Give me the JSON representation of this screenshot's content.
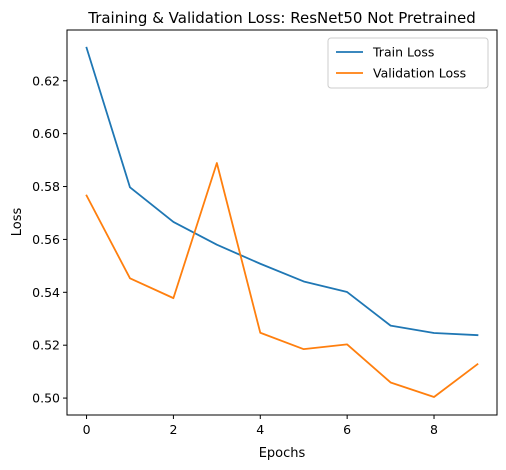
{
  "chart_data": {
    "type": "line",
    "title": "Training & Validation Loss: ResNet50 Not Pretrained",
    "xlabel": "Epochs",
    "ylabel": "Loss",
    "x": [
      0,
      1,
      2,
      3,
      4,
      5,
      6,
      7,
      8,
      9
    ],
    "xlim": [
      -0.45,
      9.45
    ],
    "ylim": [
      0.4936,
      0.6392
    ],
    "xticks": [
      0,
      2,
      4,
      6,
      8
    ],
    "yticks": [
      0.5,
      0.52,
      0.54,
      0.56,
      0.58,
      0.6,
      0.62
    ],
    "grid": false,
    "legend_position": "upper-right",
    "series": [
      {
        "name": "Train Loss",
        "color": "#1f77b4",
        "values": [
          0.6325,
          0.5797,
          0.5666,
          0.558,
          0.5508,
          0.5441,
          0.5401,
          0.5274,
          0.5246,
          0.5238
        ]
      },
      {
        "name": "Validation Loss",
        "color": "#ff7f0e",
        "values": [
          0.5766,
          0.5453,
          0.5378,
          0.5889,
          0.5247,
          0.5185,
          0.5203,
          0.5059,
          0.5004,
          0.5128
        ]
      }
    ]
  }
}
